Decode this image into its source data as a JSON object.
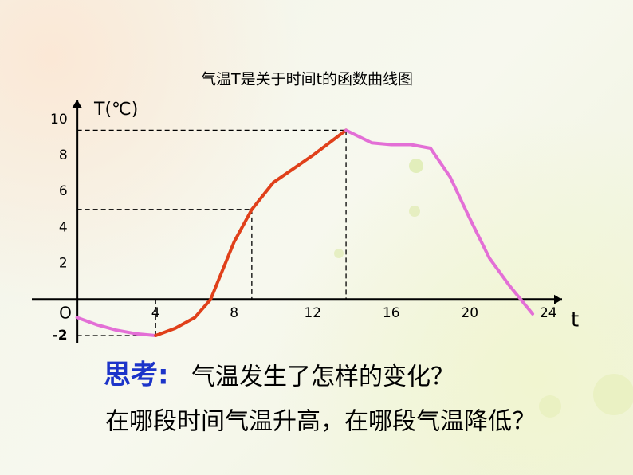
{
  "chart_data": {
    "type": "line",
    "title": "气温T是关于时间t的函数曲线图",
    "y_label": "T(℃)",
    "x_label": "t",
    "origin_label": "O",
    "xlim": [
      -2.3,
      24.7
    ],
    "ylim": [
      -2.4,
      11.1
    ],
    "xticks": [
      4,
      8,
      12,
      16,
      20,
      24
    ],
    "yticks": [
      -2,
      2,
      4,
      6,
      8,
      10
    ],
    "axis_color": "#000000",
    "guide_color": "#000000",
    "series": [
      {
        "color": "#e36fd6",
        "x": [
          0,
          1,
          2,
          3,
          4
        ],
        "values": [
          -1,
          -1.4,
          -1.7,
          -1.9,
          -2
        ]
      },
      {
        "color": "#e0401a",
        "x": [
          4,
          5,
          6,
          6.8,
          8,
          8.9,
          10,
          12,
          13.7
        ],
        "values": [
          -2,
          -1.6,
          -1,
          0,
          3.2,
          5,
          6.5,
          8,
          9.4
        ]
      },
      {
        "color": "#e36fd6",
        "x": [
          13.7,
          15,
          16,
          17,
          18,
          19,
          20,
          21,
          22,
          23.2
        ],
        "values": [
          9.4,
          8.7,
          8.6,
          8.6,
          8.4,
          6.8,
          4.5,
          2.3,
          0.8,
          -0.8
        ]
      }
    ]
  },
  "prompt": {
    "label": "思考:",
    "question1": "气温发生了怎样的变化？",
    "question2": "在哪段时间气温升高，在哪段气温降低？"
  }
}
